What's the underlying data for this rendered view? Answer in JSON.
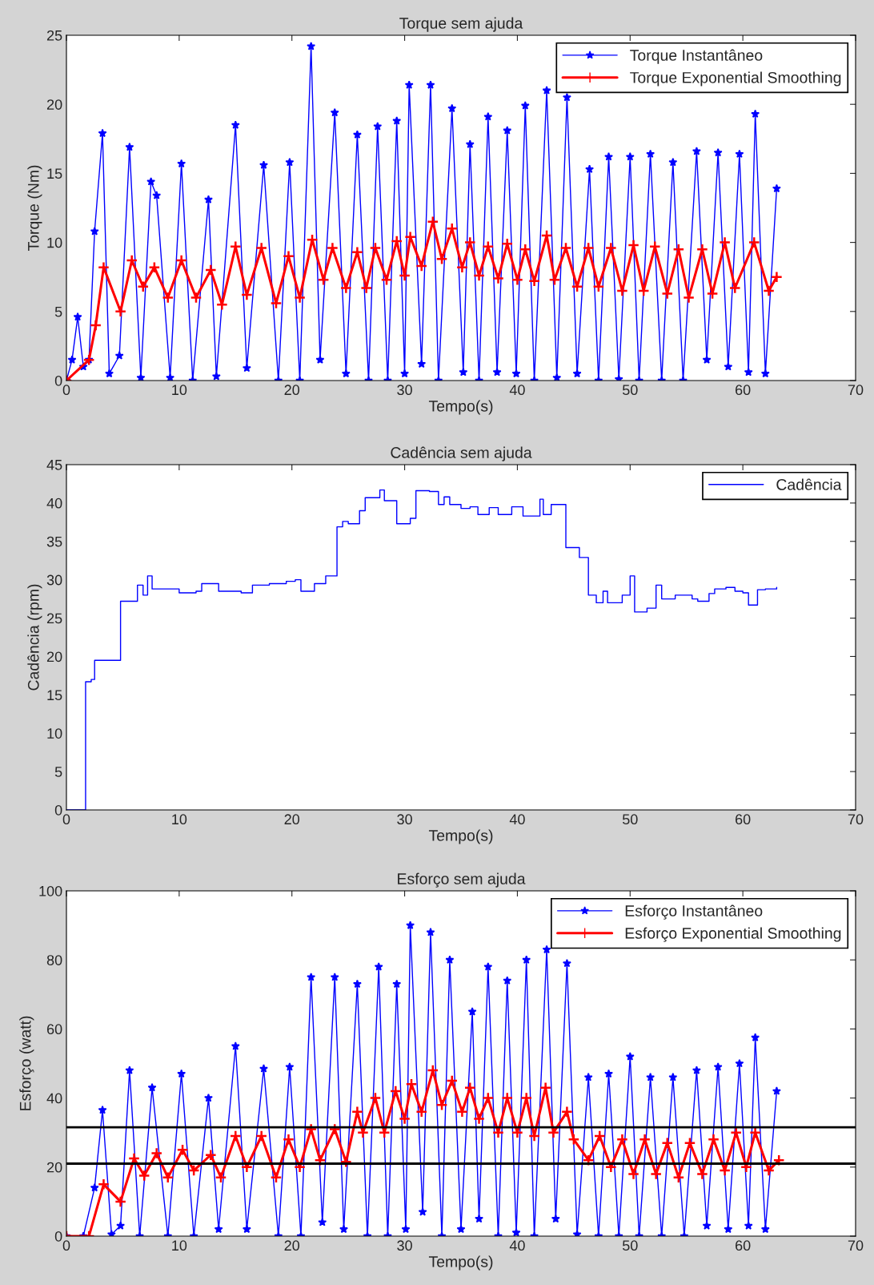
{
  "chart_data": [
    {
      "type": "line",
      "title": "Torque sem ajuda",
      "xlabel": "Tempo(s)",
      "ylabel": "Torque (Nm)",
      "xlim": [
        0,
        70
      ],
      "xticks": [
        0,
        10,
        20,
        30,
        40,
        50,
        60,
        70
      ],
      "ylim": [
        0,
        25
      ],
      "yticks": [
        0,
        5,
        10,
        15,
        20,
        25
      ],
      "legend": "top right",
      "series": [
        {
          "name": "Torque Instantâneo",
          "color": "#0000ff",
          "marker": "star",
          "x": [
            0,
            0.5,
            1,
            1.5,
            2,
            2.5,
            3.2,
            3.8,
            4.7,
            5.6,
            6.6,
            7.5,
            8,
            9.2,
            10.2,
            11.2,
            12.6,
            13.3,
            15,
            16,
            17.5,
            18.8,
            19.8,
            20.7,
            21.7,
            22.5,
            23.8,
            24.8,
            25.8,
            26.8,
            27.6,
            28.5,
            29.3,
            30,
            30.4,
            31.5,
            32.3,
            33,
            34.2,
            35.2,
            35.8,
            36.6,
            37.4,
            38.2,
            39.1,
            39.9,
            40.7,
            41.5,
            42.6,
            43.5,
            44.4,
            45.3,
            46.4,
            47.2,
            48.1,
            49,
            50,
            50.8,
            51.8,
            52.8,
            53.8,
            54.7,
            55.9,
            56.8,
            57.8,
            58.7,
            59.7,
            60.5,
            61.1,
            62,
            63
          ],
          "values": [
            0,
            1.5,
            4.6,
            1,
            1.5,
            10.8,
            17.9,
            0.5,
            1.8,
            16.9,
            0.2,
            14.4,
            13.4,
            0.2,
            15.7,
            0,
            13.1,
            0.3,
            18.5,
            0.9,
            15.6,
            0,
            15.8,
            0,
            24.2,
            1.5,
            19.4,
            0.5,
            17.8,
            0,
            18.4,
            0,
            18.8,
            0.5,
            21.4,
            1.2,
            21.4,
            0,
            19.7,
            0.6,
            17.1,
            0,
            19.1,
            0.6,
            18.1,
            0.5,
            19.9,
            0,
            21,
            0.2,
            20.5,
            0.5,
            15.3,
            0,
            16.2,
            0.1,
            16.2,
            0,
            16.4,
            0,
            15.8,
            0,
            16.6,
            1.5,
            16.5,
            1,
            16.4,
            0.6,
            19.3,
            0.5,
            13.9
          ]
        },
        {
          "name": "Torque Exponential Smoothing",
          "color": "#ff0000",
          "marker": "cross",
          "x": [
            0,
            2,
            2.6,
            3.3,
            4.8,
            5.8,
            6.8,
            7.8,
            9,
            10.2,
            11.5,
            12.8,
            13.8,
            15,
            16,
            17.3,
            18.6,
            19.7,
            20.7,
            21.8,
            22.8,
            23.6,
            24.8,
            25.8,
            26.6,
            27.4,
            28.4,
            29.3,
            30,
            30.5,
            31.5,
            32.5,
            33.3,
            34.2,
            35.1,
            35.8,
            36.6,
            37.4,
            38.3,
            39.1,
            40,
            40.7,
            41.5,
            42.6,
            43.3,
            44.3,
            45.3,
            46.3,
            47.2,
            48.3,
            49.3,
            50.3,
            51.2,
            52.2,
            53.3,
            54.3,
            55.2,
            56.4,
            57.3,
            58.4,
            59.3,
            61,
            62.3,
            63
          ],
          "values": [
            0,
            1.5,
            4,
            8.2,
            5,
            8.7,
            6.8,
            8.2,
            6,
            8.7,
            6,
            8,
            5.5,
            9.7,
            6.2,
            9.6,
            5.6,
            9,
            6,
            10.2,
            7.3,
            9.6,
            6.7,
            9.3,
            6.7,
            9.6,
            7.3,
            10.1,
            7.6,
            10.4,
            8.3,
            11.5,
            8.8,
            11,
            8.2,
            10,
            7.6,
            9.7,
            7.4,
            9.9,
            7.3,
            9.5,
            7.2,
            10.5,
            7.3,
            9.6,
            6.8,
            9.6,
            6.8,
            9.6,
            6.5,
            9.8,
            6.5,
            9.7,
            6.3,
            9.5,
            6,
            9.5,
            6.3,
            10,
            6.7,
            10,
            6.5,
            7.5
          ]
        }
      ]
    },
    {
      "type": "step",
      "title": "Cadência sem ajuda",
      "xlabel": "Tempo(s)",
      "ylabel": "Cadência (rpm)",
      "xlim": [
        0,
        70
      ],
      "xticks": [
        0,
        10,
        20,
        30,
        40,
        50,
        60,
        70
      ],
      "ylim": [
        0,
        45
      ],
      "yticks": [
        0,
        5,
        10,
        15,
        20,
        25,
        30,
        35,
        40,
        45
      ],
      "legend": "top right",
      "series": [
        {
          "name": "Cadência",
          "color": "#0000ff",
          "x": [
            0,
            1.5,
            1.7,
            2.2,
            2.5,
            4.5,
            4.8,
            6.2,
            6.3,
            6.8,
            7.2,
            7.6,
            9,
            10,
            11.5,
            12,
            13.5,
            15.5,
            16.5,
            18,
            19.5,
            20.3,
            20.8,
            22,
            23,
            24,
            24.5,
            25,
            26,
            26.5,
            27.8,
            28.2,
            29.3,
            30.5,
            31,
            32.2,
            33,
            33.5,
            34,
            35,
            35.8,
            36.5,
            37.5,
            38.3,
            39.5,
            40.5,
            42,
            42.3,
            43,
            44.3,
            45.5,
            46.3,
            47,
            47.6,
            48,
            49.3,
            50,
            50.4,
            51.5,
            52.3,
            52.8,
            54,
            55.5,
            56,
            57,
            57.5,
            58.5,
            59.3,
            60,
            60.5,
            61.3,
            62,
            63
          ],
          "values": [
            0,
            0,
            16.7,
            17,
            19.5,
            19.5,
            27.2,
            27.2,
            29.3,
            28,
            30.5,
            28.8,
            28.8,
            28.3,
            28.5,
            29.5,
            28.5,
            28.3,
            29.3,
            29.5,
            29.8,
            30,
            28.5,
            29.5,
            30.5,
            36.9,
            37.6,
            37.3,
            39,
            40.7,
            41.7,
            40.3,
            37.3,
            38,
            41.6,
            41.5,
            39.8,
            40.8,
            39.8,
            39.3,
            39.5,
            38.5,
            39.4,
            38.5,
            39.5,
            38.3,
            40.5,
            38.5,
            39.8,
            34.2,
            32.9,
            28,
            27,
            28.5,
            27,
            28,
            30.5,
            25.8,
            26.3,
            29.3,
            27.5,
            28,
            27.5,
            27.2,
            28.2,
            28.8,
            29,
            28.5,
            28.3,
            26.7,
            28.7,
            28.8,
            29
          ]
        }
      ]
    },
    {
      "type": "line",
      "title": "Esforço sem ajuda",
      "xlabel": "Tempo(s)",
      "ylabel": "Esforço (watt)",
      "xlim": [
        0,
        70
      ],
      "xticks": [
        0,
        10,
        20,
        30,
        40,
        50,
        60,
        70
      ],
      "ylim": [
        0,
        100
      ],
      "yticks": [
        0,
        20,
        40,
        60,
        80,
        100
      ],
      "legend": "top right",
      "ref_lines": [
        {
          "axis": "y",
          "value": 31.5,
          "color": "#000000"
        },
        {
          "axis": "y",
          "value": 21,
          "color": "#000000"
        }
      ],
      "series": [
        {
          "name": "Esforço Instantâneo",
          "color": "#0000ff",
          "marker": "star",
          "x": [
            0,
            1.5,
            2.5,
            3.2,
            4,
            4.8,
            5.6,
            6.5,
            7.6,
            9,
            10.2,
            11.3,
            12.6,
            13.5,
            15,
            16,
            17.5,
            18.8,
            19.8,
            20.8,
            21.7,
            22.7,
            23.8,
            24.6,
            25.8,
            26.7,
            27.7,
            28.5,
            29.3,
            30.1,
            30.5,
            31.6,
            32.3,
            33.3,
            34,
            35,
            36,
            36.6,
            37.4,
            38.3,
            39.1,
            39.9,
            40.8,
            41.5,
            42.6,
            43.4,
            44.4,
            45.3,
            46.3,
            47.2,
            48.1,
            49,
            50,
            50.8,
            51.8,
            52.8,
            53.8,
            54.8,
            55.9,
            56.8,
            57.8,
            58.7,
            59.7,
            60.5,
            61.1,
            62,
            63
          ],
          "values": [
            0,
            0,
            14,
            36.5,
            0.5,
            3,
            48,
            0,
            43,
            0,
            47,
            0,
            40,
            2,
            55,
            2,
            48.5,
            0,
            49,
            0,
            75,
            4,
            75,
            2,
            73,
            0,
            78,
            0,
            73,
            2,
            90,
            7,
            88,
            0,
            80,
            2,
            65,
            5,
            78,
            0,
            74,
            1,
            80,
            0,
            83,
            5,
            79,
            0.5,
            46,
            0,
            47,
            0,
            52,
            0,
            46,
            0,
            46,
            0,
            48,
            3,
            49,
            2,
            50,
            3,
            57.5,
            2,
            42
          ]
        },
        {
          "name": "Esforço Exponential Smoothing",
          "color": "#ff0000",
          "marker": "cross",
          "x": [
            0,
            2,
            3.3,
            4.8,
            6,
            6.9,
            8,
            9,
            10.3,
            11.3,
            12.8,
            13.7,
            15,
            16,
            17.3,
            18.6,
            19.7,
            20.7,
            21.7,
            22.5,
            23.8,
            24.8,
            25.8,
            26.3,
            27.4,
            28.2,
            29.2,
            30,
            30.6,
            31.5,
            32.5,
            33.3,
            34.2,
            35.1,
            35.8,
            36.6,
            37.4,
            38.3,
            39.1,
            40,
            40.8,
            41.5,
            42.5,
            43.2,
            44.4,
            45,
            46.3,
            47.3,
            48.3,
            49.3,
            50.3,
            51.3,
            52.3,
            53.3,
            54.3,
            55.3,
            56.4,
            57.4,
            58.4,
            59.4,
            60.3,
            61.1,
            62.3,
            63.2
          ],
          "values": [
            0,
            0,
            15,
            10,
            22.5,
            17.5,
            24,
            17,
            25,
            19,
            23.5,
            17,
            29,
            20,
            29,
            17,
            28,
            20,
            31,
            22,
            31,
            21.5,
            36,
            30,
            40,
            30,
            42,
            34,
            44,
            36,
            48,
            38,
            45,
            36,
            43,
            34,
            40,
            30,
            40,
            30,
            40,
            29,
            43,
            30,
            36,
            28,
            22,
            29,
            20,
            28,
            18,
            28,
            18,
            27,
            17,
            27,
            18,
            28,
            19,
            30,
            20,
            30,
            19,
            22
          ]
        }
      ]
    }
  ]
}
